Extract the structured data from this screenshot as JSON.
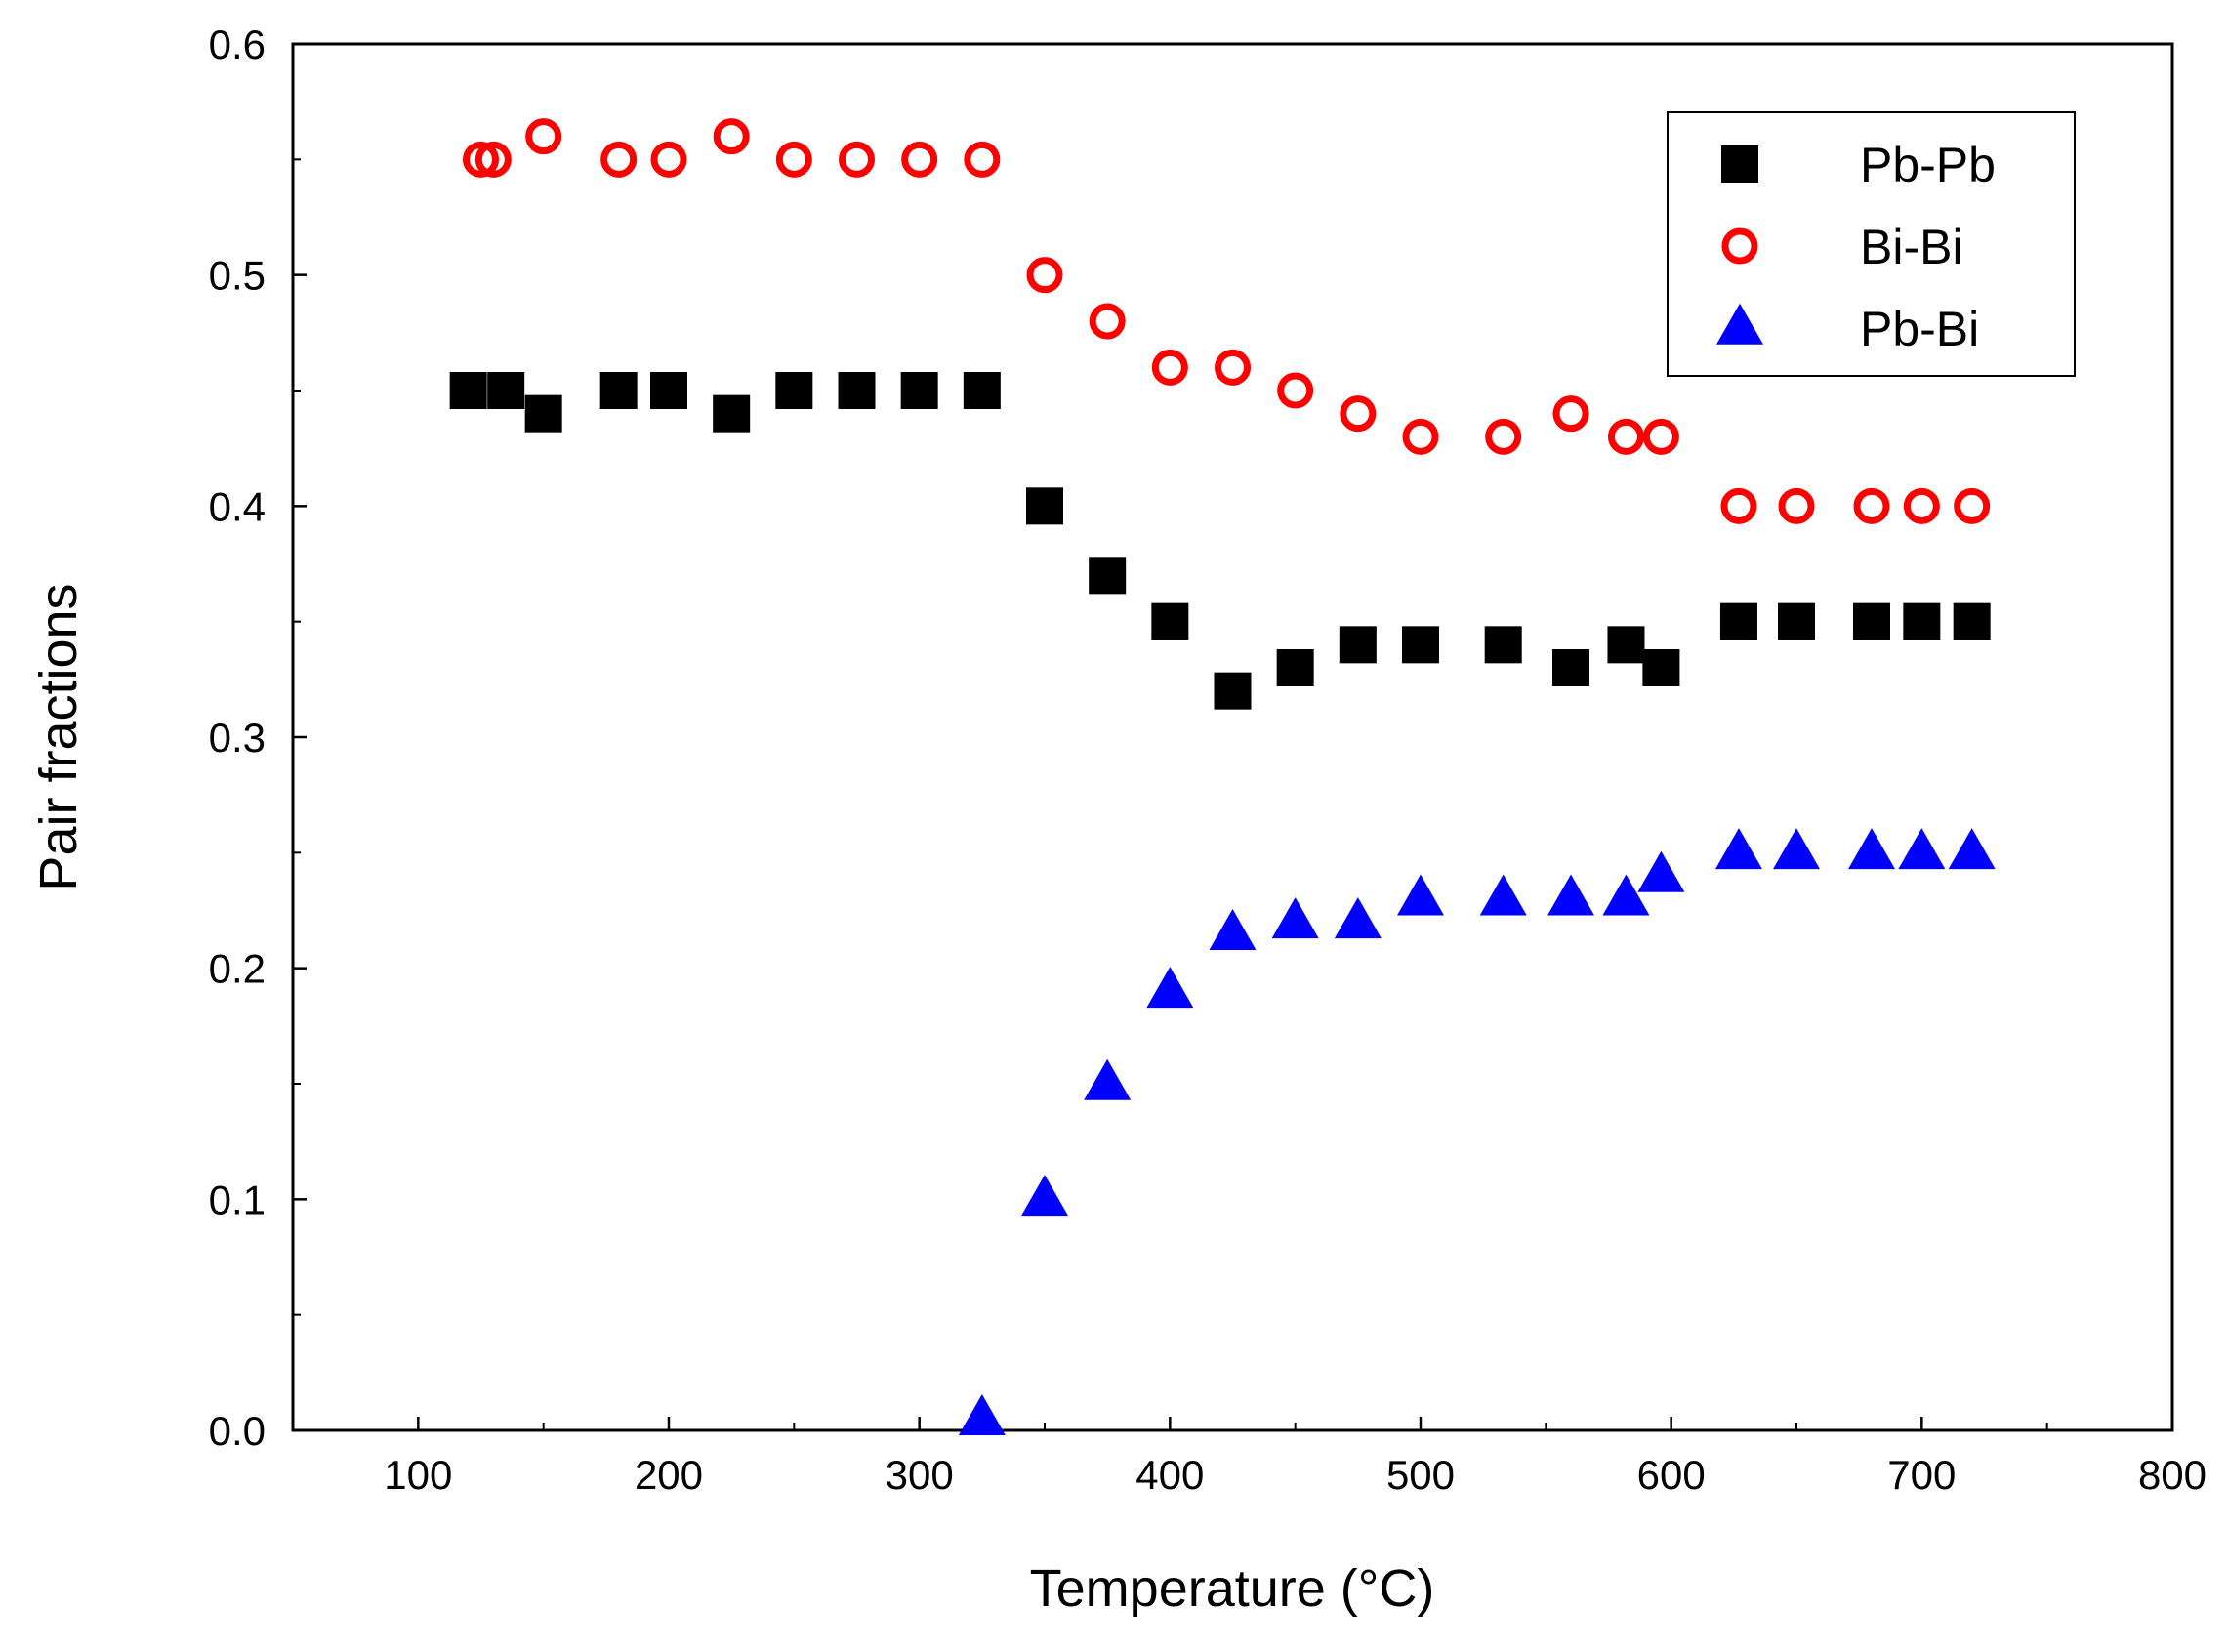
{
  "chart_data": {
    "type": "scatter",
    "title": "",
    "xlabel": "Temperature (°C)",
    "ylabel": "Pair fractions",
    "xlim": [
      50,
      800
    ],
    "ylim": [
      0,
      0.6
    ],
    "x_ticks": [
      "100",
      "200",
      "300",
      "400",
      "500",
      "600",
      "700",
      "800"
    ],
    "x_tick_values": [
      100,
      200,
      300,
      400,
      500,
      600,
      700,
      800
    ],
    "y_ticks": [
      "0.0",
      "0.1",
      "0.2",
      "0.3",
      "0.4",
      "0.5",
      "0.6"
    ],
    "y_tick_values": [
      0,
      0.1,
      0.2,
      0.3,
      0.4,
      0.5,
      0.6
    ],
    "grid": false,
    "legend_position": "top-right",
    "series": [
      {
        "name": "Pb-Pb",
        "marker": "square",
        "color": "#000000",
        "points": [
          [
            120,
            0.45
          ],
          [
            135,
            0.45
          ],
          [
            150,
            0.44
          ],
          [
            180,
            0.45
          ],
          [
            200,
            0.45
          ],
          [
            225,
            0.44
          ],
          [
            250,
            0.45
          ],
          [
            275,
            0.45
          ],
          [
            300,
            0.45
          ],
          [
            325,
            0.45
          ],
          [
            350,
            0.4
          ],
          [
            375,
            0.37
          ],
          [
            400,
            0.35
          ],
          [
            425,
            0.32
          ],
          [
            450,
            0.33
          ],
          [
            475,
            0.34
          ],
          [
            500,
            0.34
          ],
          [
            533,
            0.34
          ],
          [
            560,
            0.33
          ],
          [
            582,
            0.34
          ],
          [
            596,
            0.33
          ],
          [
            627,
            0.35
          ],
          [
            650,
            0.35
          ],
          [
            680,
            0.35
          ],
          [
            700,
            0.35
          ],
          [
            720,
            0.35
          ]
        ]
      },
      {
        "name": "Bi-Bi",
        "marker": "open-circle",
        "color": "#ff0000",
        "points": [
          [
            125,
            0.55
          ],
          [
            130,
            0.55
          ],
          [
            150,
            0.56
          ],
          [
            180,
            0.55
          ],
          [
            200,
            0.55
          ],
          [
            225,
            0.56
          ],
          [
            250,
            0.55
          ],
          [
            275,
            0.55
          ],
          [
            300,
            0.55
          ],
          [
            325,
            0.55
          ],
          [
            350,
            0.5
          ],
          [
            375,
            0.48
          ],
          [
            400,
            0.46
          ],
          [
            425,
            0.46
          ],
          [
            450,
            0.45
          ],
          [
            475,
            0.44
          ],
          [
            500,
            0.43
          ],
          [
            533,
            0.43
          ],
          [
            560,
            0.44
          ],
          [
            582,
            0.43
          ],
          [
            596,
            0.43
          ],
          [
            627,
            0.4
          ],
          [
            650,
            0.4
          ],
          [
            680,
            0.4
          ],
          [
            700,
            0.4
          ],
          [
            720,
            0.4
          ]
        ]
      },
      {
        "name": "Pb-Bi",
        "marker": "triangle",
        "color": "#0000ff",
        "points": [
          [
            325,
            0.005
          ],
          [
            350,
            0.1
          ],
          [
            375,
            0.15
          ],
          [
            400,
            0.19
          ],
          [
            425,
            0.215
          ],
          [
            450,
            0.22
          ],
          [
            475,
            0.22
          ],
          [
            500,
            0.23
          ],
          [
            533,
            0.23
          ],
          [
            560,
            0.23
          ],
          [
            582,
            0.23
          ],
          [
            596,
            0.24
          ],
          [
            627,
            0.25
          ],
          [
            650,
            0.25
          ],
          [
            680,
            0.25
          ],
          [
            700,
            0.25
          ],
          [
            720,
            0.25
          ]
        ]
      }
    ]
  }
}
